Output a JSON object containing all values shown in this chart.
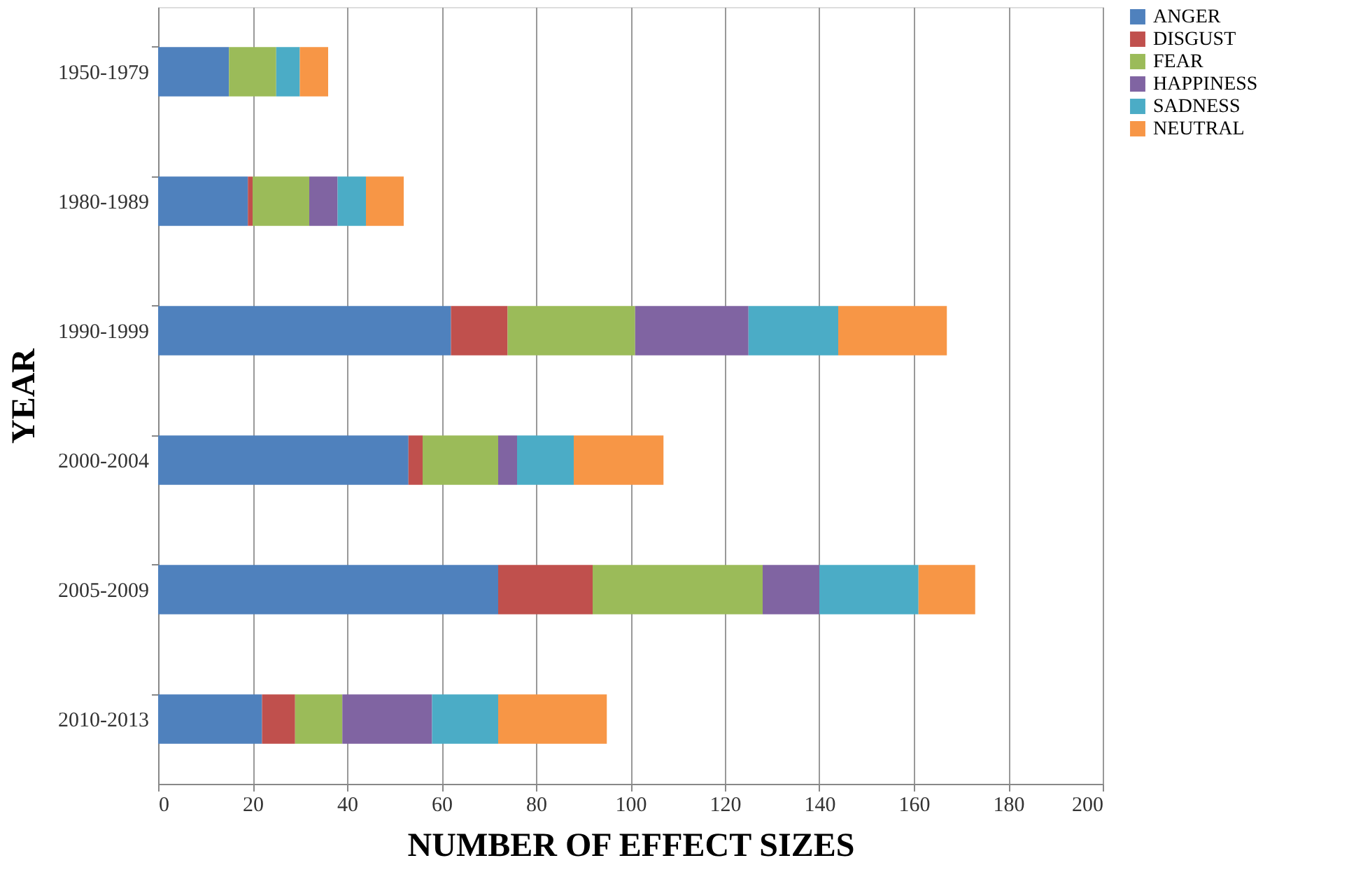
{
  "chart_data": {
    "type": "bar",
    "orientation": "horizontal",
    "stacked": true,
    "xlabel": "NUMBER OF EFFECT SIZES",
    "ylabel": "YEAR",
    "categories": [
      "1950-1979",
      "1980-1989",
      "1990-1999",
      "2000-2004",
      "2005-2009",
      "2010-2013"
    ],
    "series": [
      {
        "name": "ANGER",
        "color": "#4f81bd",
        "values": [
          15,
          19,
          62,
          53,
          72,
          22
        ]
      },
      {
        "name": "DISGUST",
        "color": "#c0504d",
        "values": [
          0,
          1,
          12,
          3,
          20,
          7
        ]
      },
      {
        "name": "FEAR",
        "color": "#9bbb59",
        "values": [
          10,
          12,
          27,
          16,
          36,
          10
        ]
      },
      {
        "name": "HAPPINESS",
        "color": "#8064a2",
        "values": [
          0,
          6,
          24,
          4,
          12,
          19
        ]
      },
      {
        "name": "SADNESS",
        "color": "#4bacc6",
        "values": [
          5,
          6,
          19,
          12,
          21,
          14
        ]
      },
      {
        "name": "NEUTRAL",
        "color": "#f79646",
        "values": [
          6,
          8,
          23,
          19,
          12,
          23
        ]
      }
    ],
    "xlim": [
      0,
      200
    ],
    "xticks": [
      0,
      20,
      40,
      60,
      80,
      100,
      120,
      140,
      160,
      180,
      200
    ],
    "grid": "x",
    "legend": "right"
  }
}
